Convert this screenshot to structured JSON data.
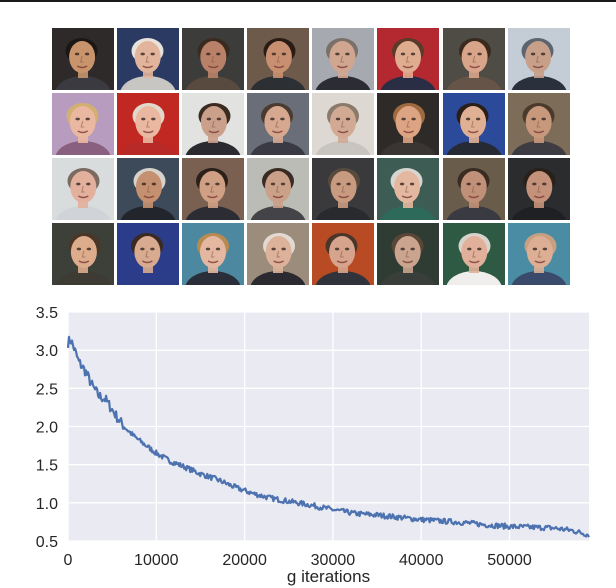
{
  "faces": {
    "rows": 4,
    "cols": 8,
    "tiles": [
      {
        "bg": "#2f2a2a",
        "skin": "#c8946c",
        "hair": "#1d1714",
        "shirt": "#3a3a40"
      },
      {
        "bg": "#2a3a63",
        "skin": "#e2b49b",
        "hair": "#e8e2dc",
        "shirt": "#c8c6c2"
      },
      {
        "bg": "#3c3d3a",
        "skin": "#b98268",
        "hair": "#3b2a20",
        "shirt": "#584a3e"
      },
      {
        "bg": "#6e5a4a",
        "skin": "#c89070",
        "hair": "#2a1c14",
        "shirt": "#2c3034"
      },
      {
        "bg": "#a6aab0",
        "skin": "#d0a690",
        "hair": "#7b7068",
        "shirt": "#2c2c34"
      },
      {
        "bg": "#b42830",
        "skin": "#e0ac90",
        "hair": "#5a3a28",
        "shirt": "#2a2e44"
      },
      {
        "bg": "#4e4c44",
        "skin": "#d8a48a",
        "hair": "#3b2a1e",
        "shirt": "#665448"
      },
      {
        "bg": "#c4ccd6",
        "skin": "#c8a08a",
        "hair": "#5c6470",
        "shirt": "#2a303c"
      },
      {
        "bg": "#b89cc0",
        "skin": "#eab8a0",
        "hair": "#d2b070",
        "shirt": "#8a6080"
      },
      {
        "bg": "#c22822",
        "skin": "#eab8a0",
        "hair": "#e2d8cc",
        "shirt": "#b82a28"
      },
      {
        "bg": "#e2e2e0",
        "skin": "#caa08a",
        "hair": "#3a2a20",
        "shirt": "#2a2a30"
      },
      {
        "bg": "#6a6e78",
        "skin": "#d6a890",
        "hair": "#4a3a30",
        "shirt": "#3a3a44"
      },
      {
        "bg": "#ddd8d2",
        "skin": "#d2aa94",
        "hair": "#8a7a6c",
        "shirt": "#c8c4c0"
      },
      {
        "bg": "#2e2a28",
        "skin": "#dca482",
        "hair": "#a06a40",
        "shirt": "#3a3432"
      },
      {
        "bg": "#2c4a9a",
        "skin": "#e0b094",
        "hair": "#2a1e18",
        "shirt": "#262a34"
      },
      {
        "bg": "#7c6c58",
        "skin": "#c8987c",
        "hair": "#4a3a2c",
        "shirt": "#3c3c42"
      },
      {
        "bg": "#d8dcdc",
        "skin": "#e2b09c",
        "hair": "#7a6a60",
        "shirt": "#d0d4d8"
      },
      {
        "bg": "#3c4a5a",
        "skin": "#c49070",
        "hair": "#d8d2cc",
        "shirt": "#22262c"
      },
      {
        "bg": "#7a6050",
        "skin": "#cfa084",
        "hair": "#2c201a",
        "shirt": "#2c2c34"
      },
      {
        "bg": "#bcbcb6",
        "skin": "#caa088",
        "hair": "#3a2c24",
        "shirt": "#444448"
      },
      {
        "bg": "#3a3a3c",
        "skin": "#c89a80",
        "hair": "#5a4a3c",
        "shirt": "#282a2e"
      },
      {
        "bg": "#3c5c54",
        "skin": "#e4b8a0",
        "hair": "#d8d4d0",
        "shirt": "#2e6a5a"
      },
      {
        "bg": "#6a5c4a",
        "skin": "#c09078",
        "hair": "#3a2c22",
        "shirt": "#3a3a42"
      },
      {
        "bg": "#2a2c2e",
        "skin": "#c4927a",
        "hair": "#2a201a",
        "shirt": "#1e2024"
      },
      {
        "bg": "#3c4038",
        "skin": "#dcac8c",
        "hair": "#4a3626",
        "shirt": "#3e3a34"
      },
      {
        "bg": "#2a3c8a",
        "skin": "#d8aa90",
        "hair": "#3a2a22",
        "shirt": "#2c3c88"
      },
      {
        "bg": "#4c88a0",
        "skin": "#e4b8a0",
        "hair": "#b88a50",
        "shirt": "#2a2e38"
      },
      {
        "bg": "#9c8c7c",
        "skin": "#ddb29a",
        "hair": "#e2dad2",
        "shirt": "#2a2a30"
      },
      {
        "bg": "#b84a24",
        "skin": "#d6a48c",
        "hair": "#4a3628",
        "shirt": "#30343a"
      },
      {
        "bg": "#2e3c34",
        "skin": "#caa48e",
        "hair": "#5a4636",
        "shirt": "#3a3e3a"
      },
      {
        "bg": "#2e5a44",
        "skin": "#e0b09a",
        "hair": "#d8d2cc",
        "shirt": "#f0eeec"
      },
      {
        "bg": "#4a8ca4",
        "skin": "#dcae94",
        "hair": "#c8a080",
        "shirt": "#3a4a6a"
      }
    ]
  },
  "chart_data": {
    "type": "line",
    "xlabel": "g iterations",
    "ylabel": "",
    "title": "",
    "xlim": [
      0,
      59000
    ],
    "ylim": [
      0.5,
      3.5
    ],
    "xticks": [
      0,
      10000,
      20000,
      30000,
      40000,
      50000
    ],
    "yticks": [
      0.5,
      1.0,
      1.5,
      2.0,
      2.5,
      3.0,
      3.5
    ],
    "xtick_labels": [
      "0",
      "10000",
      "20000",
      "30000",
      "40000",
      "50000"
    ],
    "ytick_labels": [
      "0.5",
      "1.0",
      "1.5",
      "2.0",
      "2.5",
      "3.0",
      "3.5"
    ],
    "grid": true,
    "line_color": "#4c72b0",
    "background": "#eaeaf2",
    "series": [
      {
        "x": [
          0,
          300,
          700,
          1200,
          2000,
          2800,
          3500,
          4200,
          5000,
          5800,
          6500,
          7500,
          8500,
          10000,
          11500,
          13000,
          15000,
          17000,
          19000,
          21000,
          23000,
          25000,
          27500,
          30000,
          32500,
          35000,
          37500,
          40000,
          42500,
          45000,
          47500,
          50000,
          52500,
          55000,
          57000,
          59000
        ],
        "y": [
          3.1,
          3.14,
          3.02,
          2.85,
          2.72,
          2.52,
          2.4,
          2.36,
          2.22,
          2.08,
          1.98,
          1.87,
          1.78,
          1.65,
          1.55,
          1.48,
          1.38,
          1.3,
          1.2,
          1.12,
          1.06,
          1.02,
          0.97,
          0.91,
          0.86,
          0.84,
          0.81,
          0.78,
          0.76,
          0.74,
          0.71,
          0.69,
          0.68,
          0.67,
          0.64,
          0.58
        ]
      }
    ]
  }
}
